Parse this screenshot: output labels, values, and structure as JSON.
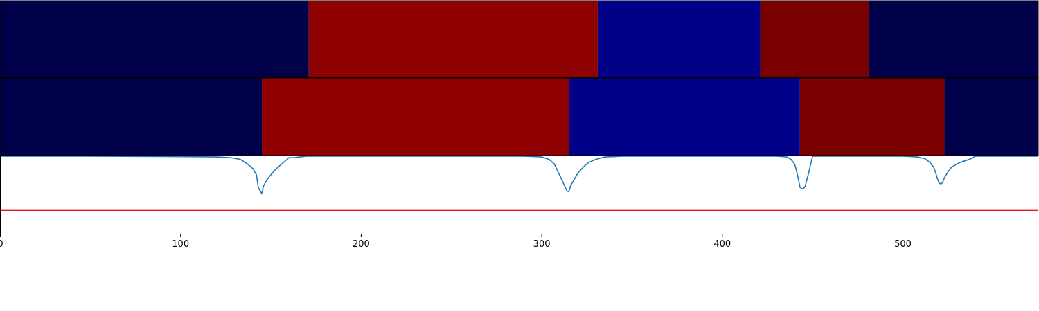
{
  "chart_data": [
    {
      "type": "heatmap",
      "panel": "top-band",
      "xlim": [
        0,
        575
      ],
      "segments": [
        {
          "start": 0,
          "end": 171,
          "color": "#00004a"
        },
        {
          "start": 171,
          "end": 331,
          "color": "#8f0000"
        },
        {
          "start": 331,
          "end": 421,
          "color": "#000088"
        },
        {
          "start": 421,
          "end": 481,
          "color": "#7a0000"
        },
        {
          "start": 481,
          "end": 575,
          "color": "#00004a"
        }
      ]
    },
    {
      "type": "heatmap",
      "panel": "middle-band",
      "xlim": [
        0,
        575
      ],
      "segments": [
        {
          "start": 0,
          "end": 145,
          "color": "#00004a"
        },
        {
          "start": 145,
          "end": 315,
          "color": "#8f0000"
        },
        {
          "start": 315,
          "end": 443,
          "color": "#000088"
        },
        {
          "start": 443,
          "end": 523,
          "color": "#7a0000"
        },
        {
          "start": 523,
          "end": 575,
          "color": "#00004a"
        }
      ]
    },
    {
      "type": "line",
      "panel": "bottom-signal",
      "xlim": [
        0,
        575
      ],
      "ylim": [
        0,
        1.0
      ],
      "threshold": 0.3,
      "threshold_color": "#e41a1c",
      "line_color": "#1f77b4",
      "series": [
        {
          "x": [
            0,
            50,
            100,
            120,
            128,
            133,
            137,
            140,
            142,
            143,
            144,
            145,
            146,
            148,
            150,
            153,
            156,
            158,
            160,
            163,
            166,
            170,
            180,
            200,
            250,
            290,
            300,
            304,
            307,
            309,
            311,
            313,
            314,
            315,
            316,
            318,
            320,
            323,
            326,
            330,
            335,
            345,
            400,
            430,
            436,
            438,
            440,
            441,
            442,
            443,
            444,
            445,
            446,
            448,
            450,
            460,
            500,
            508,
            512,
            515,
            517,
            518,
            519,
            520,
            521,
            522,
            523,
            525,
            527,
            530,
            533,
            537,
            540,
            575
          ],
          "y": [
            1.0,
            1.0,
            0.995,
            0.99,
            0.98,
            0.96,
            0.9,
            0.84,
            0.76,
            0.6,
            0.55,
            0.52,
            0.62,
            0.7,
            0.76,
            0.84,
            0.9,
            0.94,
            0.98,
            0.98,
            0.99,
            1.0,
            1.0,
            1.0,
            1.0,
            1.0,
            0.99,
            0.96,
            0.9,
            0.8,
            0.7,
            0.6,
            0.55,
            0.54,
            0.62,
            0.7,
            0.78,
            0.86,
            0.92,
            0.96,
            0.99,
            1.0,
            1.0,
            1.0,
            0.99,
            0.96,
            0.9,
            0.82,
            0.72,
            0.6,
            0.58,
            0.58,
            0.62,
            0.8,
            1.0,
            1.0,
            1.0,
            0.99,
            0.97,
            0.92,
            0.86,
            0.8,
            0.72,
            0.66,
            0.64,
            0.66,
            0.72,
            0.8,
            0.86,
            0.9,
            0.93,
            0.96,
            1.0,
            1.0
          ]
        }
      ],
      "xticks": [
        0,
        100,
        200,
        300,
        400,
        500
      ],
      "xtick_labels": [
        "0",
        "100",
        "200",
        "300",
        "400",
        "500"
      ]
    }
  ]
}
